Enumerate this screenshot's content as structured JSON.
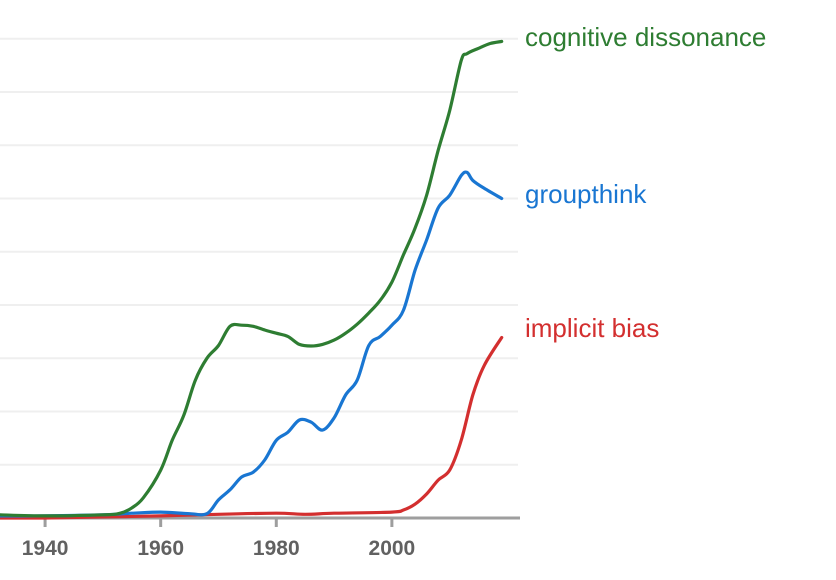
{
  "chart_data": {
    "type": "line",
    "title": "",
    "xlabel": "",
    "ylabel": "",
    "x_ticks": [
      1940,
      1960,
      1980,
      2000
    ],
    "xlim": [
      1932,
      2019
    ],
    "ylim": [
      0,
      9
    ],
    "grid": true,
    "gridline_count": 9,
    "legend_position": "inline-right",
    "series": [
      {
        "name": "cognitive dissonance",
        "color": "#2E7D32",
        "x": [
          1932,
          1940,
          1950,
          1953,
          1955,
          1957,
          1960,
          1962,
          1964,
          1966,
          1968,
          1970,
          1972,
          1974,
          1976,
          1978,
          1980,
          1982,
          1984,
          1986,
          1988,
          1990,
          1992,
          1994,
          1996,
          1998,
          2000,
          2002,
          2004,
          2006,
          2008,
          2010,
          2012,
          2013,
          2015,
          2017,
          2019
        ],
        "values": [
          0.06,
          0.04,
          0.06,
          0.09,
          0.19,
          0.38,
          0.9,
          1.46,
          1.93,
          2.59,
          3.0,
          3.24,
          3.6,
          3.62,
          3.6,
          3.53,
          3.47,
          3.41,
          3.26,
          3.23,
          3.26,
          3.34,
          3.47,
          3.64,
          3.85,
          4.09,
          4.43,
          4.94,
          5.44,
          6.06,
          6.9,
          7.65,
          8.59,
          8.72,
          8.82,
          8.91,
          8.95
        ]
      },
      {
        "name": "groupthink",
        "color": "#1976D2",
        "x": [
          1932,
          1940,
          1950,
          1955,
          1960,
          1965,
          1968,
          1970,
          1972,
          1974,
          1976,
          1978,
          1980,
          1982,
          1984,
          1986,
          1988,
          1990,
          1992,
          1994,
          1996,
          1998,
          2000,
          2002,
          2004,
          2006,
          2008,
          2010,
          2012,
          2013,
          2014,
          2016,
          2019
        ],
        "values": [
          0.04,
          0.04,
          0.06,
          0.09,
          0.11,
          0.08,
          0.08,
          0.34,
          0.53,
          0.77,
          0.86,
          1.09,
          1.46,
          1.61,
          1.84,
          1.8,
          1.65,
          1.88,
          2.31,
          2.59,
          3.24,
          3.41,
          3.62,
          3.9,
          4.65,
          5.22,
          5.82,
          6.06,
          6.43,
          6.49,
          6.34,
          6.19,
          6.0
        ]
      },
      {
        "name": "implicit bias",
        "color": "#D32F2F",
        "x": [
          1932,
          1940,
          1950,
          1960,
          1970,
          1980,
          1985,
          1990,
          2000,
          2002,
          2004,
          2006,
          2008,
          2010,
          2012,
          2014,
          2016,
          2019
        ],
        "values": [
          0.0,
          0.0,
          0.02,
          0.04,
          0.07,
          0.09,
          0.07,
          0.09,
          0.11,
          0.15,
          0.26,
          0.45,
          0.71,
          0.9,
          1.46,
          2.31,
          2.87,
          3.39
        ]
      }
    ]
  },
  "labels": {
    "series_0": "cognitive dissonance",
    "series_1": "groupthink",
    "series_2": "implicit bias",
    "tick_0": "1940",
    "tick_1": "1960",
    "tick_2": "1980",
    "tick_3": "2000"
  }
}
